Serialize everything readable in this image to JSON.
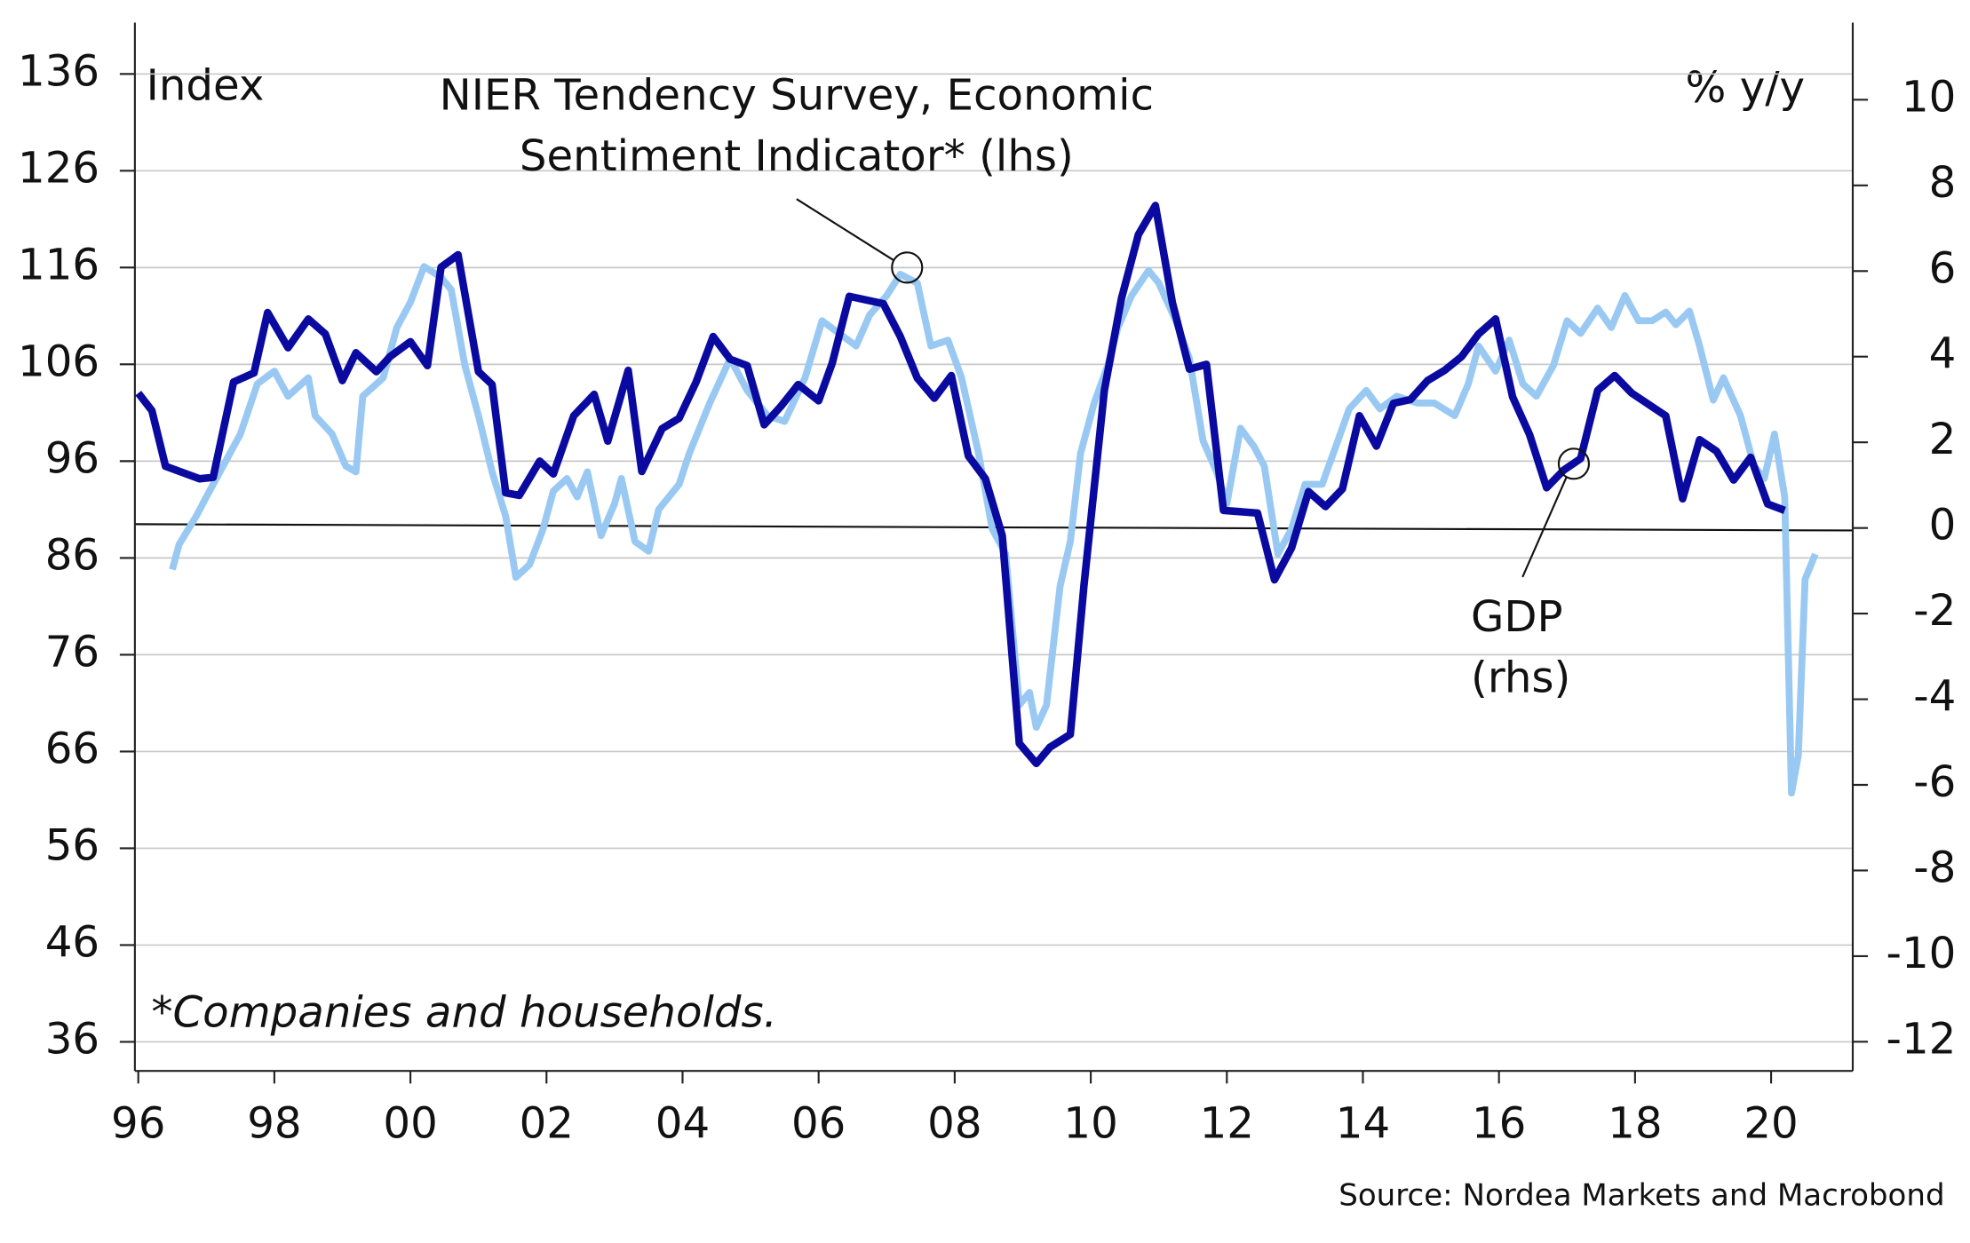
{
  "chart_data": {
    "type": "line",
    "y_label": "Index",
    "y2_label": "% y/y",
    "note": "*Companies and households.",
    "source": "Source: Nordea Markets and Macrobond",
    "xlim": [
      1995.95,
      2021.2
    ],
    "xticks": [
      {
        "value": 1996,
        "label": "96"
      },
      {
        "value": 1998,
        "label": "98"
      },
      {
        "value": 2000,
        "label": "00"
      },
      {
        "value": 2002,
        "label": "02"
      },
      {
        "value": 2004,
        "label": "04"
      },
      {
        "value": 2006,
        "label": "06"
      },
      {
        "value": 2008,
        "label": "08"
      },
      {
        "value": 2010,
        "label": "10"
      },
      {
        "value": 2012,
        "label": "12"
      },
      {
        "value": 2014,
        "label": "14"
      },
      {
        "value": 2016,
        "label": "16"
      },
      {
        "value": 2018,
        "label": "18"
      },
      {
        "value": 2020,
        "label": "20"
      }
    ],
    "ylim": [
      33,
      141.3
    ],
    "yticks": [
      36,
      46,
      56,
      66,
      76,
      86,
      96,
      106,
      116,
      126,
      136
    ],
    "y2lim": [
      -12.68,
      11.8
    ],
    "y2ticks": [
      -12,
      -10,
      -8,
      -6,
      -4,
      -2,
      0,
      2,
      4,
      6,
      8,
      10
    ],
    "grid": true,
    "series": [
      {
        "color": "#99c9f2",
        "axis": "y",
        "x": [
          1996.5,
          1996.6,
          1996.85,
          1997.0,
          1997.2,
          1997.5,
          1997.75,
          1998.0,
          1998.2,
          1998.5,
          1998.6,
          1998.85,
          1999.05,
          1999.2,
          1999.3,
          1999.6,
          1999.8,
          2000.0,
          2000.2,
          2000.45,
          2000.6,
          2000.8,
          2001.0,
          2001.2,
          2001.4,
          2001.55,
          2001.75,
          2001.95,
          2002.1,
          2002.3,
          2002.45,
          2002.6,
          2002.8,
          2003.0,
          2003.1,
          2003.3,
          2003.5,
          2003.65,
          2003.95,
          2004.1,
          2004.4,
          2004.7,
          2004.95,
          2005.25,
          2005.5,
          2005.8,
          2006.05,
          2006.3,
          2006.55,
          2006.75,
          2007.0,
          2007.2,
          2007.45,
          2007.65,
          2007.9,
          2008.1,
          2008.35,
          2008.55,
          2008.75,
          2008.95,
          2009.1,
          2009.2,
          2009.35,
          2009.55,
          2009.7,
          2009.85,
          2010.05,
          2010.25,
          2010.4,
          2010.6,
          2010.85,
          2011.0,
          2011.25,
          2011.45,
          2011.65,
          2011.85,
          2012.0,
          2012.2,
          2012.4,
          2012.55,
          2012.75,
          2012.95,
          2013.15,
          2013.4,
          2013.6,
          2013.8,
          2014.05,
          2014.25,
          2014.5,
          2014.8,
          2015.05,
          2015.35,
          2015.55,
          2015.7,
          2015.95,
          2016.15,
          2016.35,
          2016.55,
          2016.8,
          2017.0,
          2017.2,
          2017.45,
          2017.65,
          2017.85,
          2018.05,
          2018.25,
          2018.45,
          2018.6,
          2018.8,
          2018.95,
          2019.15,
          2019.3,
          2019.55,
          2019.75,
          2019.9,
          2020.05,
          2020.2,
          2020.3,
          2020.4,
          2020.5,
          2020.65
        ],
        "values": [
          84.8,
          87.4,
          90.3,
          92.3,
          94.9,
          98.8,
          104.0,
          105.3,
          102.7,
          104.6,
          100.7,
          98.8,
          95.5,
          94.9,
          102.7,
          104.6,
          109.8,
          112.4,
          116.1,
          115.0,
          113.7,
          105.9,
          100.7,
          94.9,
          90.3,
          84.0,
          85.3,
          89.0,
          92.9,
          94.2,
          92.3,
          94.9,
          88.3,
          91.6,
          94.2,
          87.7,
          86.7,
          91.0,
          93.6,
          96.8,
          102.0,
          106.6,
          103.3,
          100.7,
          100.1,
          104.6,
          110.5,
          109.2,
          107.9,
          111.1,
          113.1,
          115.3,
          114.4,
          107.9,
          108.5,
          104.6,
          96.8,
          89.0,
          86.4,
          70.8,
          72.1,
          68.5,
          70.8,
          83.1,
          87.7,
          96.8,
          102.0,
          105.9,
          109.8,
          113.1,
          115.7,
          114.4,
          110.5,
          106.6,
          98.1,
          94.9,
          91.6,
          99.4,
          97.5,
          95.5,
          86.4,
          89.0,
          93.6,
          93.6,
          97.5,
          101.4,
          103.3,
          101.4,
          102.7,
          102.0,
          102.0,
          100.7,
          104.0,
          107.9,
          105.3,
          108.5,
          104.0,
          102.7,
          105.9,
          110.5,
          109.2,
          111.8,
          109.8,
          113.1,
          110.5,
          110.5,
          111.4,
          110.1,
          111.5,
          107.9,
          102.3,
          104.6,
          100.7,
          95.5,
          94.2,
          98.8,
          92.3,
          61.7,
          65.6,
          83.8,
          86.4
        ]
      },
      {
        "color": "#0a0aa0",
        "axis": "y2",
        "x": [
          1996.0,
          1996.2,
          1996.4,
          1996.9,
          1997.1,
          1997.4,
          1997.7,
          1997.9,
          1998.2,
          1998.5,
          1998.75,
          1999.0,
          1999.2,
          1999.5,
          1999.7,
          2000.0,
          2000.25,
          2000.45,
          2000.7,
          2001.0,
          2001.2,
          2001.4,
          2001.6,
          2001.9,
          2002.1,
          2002.4,
          2002.7,
          2002.9,
          2003.2,
          2003.4,
          2003.7,
          2003.95,
          2004.2,
          2004.45,
          2004.7,
          2004.95,
          2005.2,
          2005.45,
          2005.7,
          2006.0,
          2006.2,
          2006.45,
          2006.95,
          2007.2,
          2007.45,
          2007.7,
          2007.95,
          2008.2,
          2008.45,
          2008.7,
          2008.95,
          2009.2,
          2009.4,
          2009.7,
          2009.9,
          2010.2,
          2010.45,
          2010.7,
          2010.95,
          2011.2,
          2011.45,
          2011.7,
          2011.95,
          2012.45,
          2012.7,
          2012.95,
          2013.2,
          2013.45,
          2013.7,
          2013.95,
          2014.2,
          2014.45,
          2014.7,
          2014.95,
          2015.2,
          2015.45,
          2015.7,
          2015.95,
          2016.2,
          2016.45,
          2016.7,
          2016.95,
          2017.2,
          2017.45,
          2017.7,
          2017.95,
          2018.45,
          2018.7,
          2018.95,
          2019.2,
          2019.45,
          2019.7,
          2019.95,
          2020.2
        ],
        "values": [
          3.15,
          2.74,
          1.44,
          1.15,
          1.18,
          3.41,
          3.62,
          5.03,
          4.21,
          4.88,
          4.53,
          3.44,
          4.09,
          3.65,
          4.0,
          4.35,
          3.79,
          6.09,
          6.38,
          3.65,
          3.35,
          0.82,
          0.76,
          1.56,
          1.26,
          2.62,
          3.12,
          2.03,
          3.68,
          1.32,
          2.32,
          2.56,
          3.41,
          4.47,
          3.94,
          3.79,
          2.41,
          2.85,
          3.35,
          2.97,
          3.85,
          5.41,
          5.24,
          4.47,
          3.5,
          3.03,
          3.56,
          1.68,
          1.15,
          -0.18,
          -5.03,
          -5.5,
          -5.12,
          -4.82,
          -1.35,
          3.21,
          5.35,
          6.85,
          7.53,
          5.26,
          3.71,
          3.82,
          0.41,
          0.35,
          -1.21,
          -0.47,
          0.85,
          0.5,
          0.91,
          2.62,
          1.91,
          2.91,
          3.0,
          3.44,
          3.68,
          4.0,
          4.53,
          4.88,
          3.06,
          2.18,
          0.94,
          1.35,
          1.62,
          3.21,
          3.56,
          3.15,
          2.62,
          0.68,
          2.06,
          1.79,
          1.12,
          1.65,
          0.56,
          0.41
        ]
      }
    ],
    "annotations": [
      {
        "lines": [
          "NIER Tendency Survey, Economic",
          "Sentiment Indicator* (lhs)"
        ],
        "x": 2007.3,
        "y": 116,
        "axis": "y"
      },
      {
        "lines": [
          "GDP",
          "(rhs)"
        ],
        "x": 2017.1,
        "y": 1.5,
        "axis": "y2"
      }
    ]
  }
}
